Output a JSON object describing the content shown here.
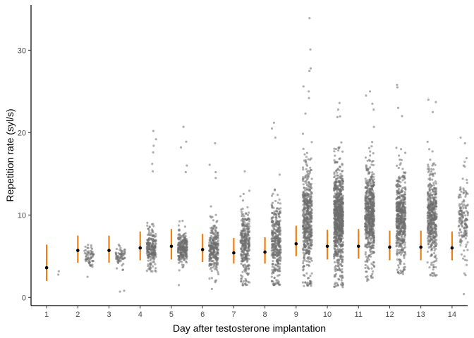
{
  "chart_data": {
    "type": "scatter",
    "xlabel": "Day after testosterone implantation",
    "ylabel": "Repetition rate (syl/s)",
    "x_ticks": [
      "1",
      "2",
      "3",
      "4",
      "5",
      "6",
      "7",
      "8",
      "9",
      "10",
      "11",
      "12",
      "13",
      "14"
    ],
    "y_ticks": [
      0,
      10,
      20,
      30
    ],
    "xlim": [
      0.5,
      14.5
    ],
    "ylim": [
      -1,
      35.5
    ],
    "grid": false,
    "legend": "none",
    "colors": {
      "points": "#6e6e6e",
      "error_bar": "#f07f10",
      "mean": "#000000"
    },
    "summary": [
      {
        "day": 1,
        "mean": 3.6,
        "low": 2.0,
        "high": 6.4
      },
      {
        "day": 2,
        "mean": 5.7,
        "low": 4.2,
        "high": 7.5
      },
      {
        "day": 3,
        "mean": 5.7,
        "low": 4.2,
        "high": 7.5
      },
      {
        "day": 4,
        "mean": 6.0,
        "low": 4.5,
        "high": 8.0
      },
      {
        "day": 5,
        "mean": 6.2,
        "low": 4.6,
        "high": 8.3
      },
      {
        "day": 6,
        "mean": 5.8,
        "low": 4.3,
        "high": 7.7
      },
      {
        "day": 7,
        "mean": 5.4,
        "low": 4.1,
        "high": 7.2
      },
      {
        "day": 8,
        "mean": 5.5,
        "low": 4.1,
        "high": 7.3
      },
      {
        "day": 9,
        "mean": 6.5,
        "low": 5.0,
        "high": 8.7
      },
      {
        "day": 10,
        "mean": 6.2,
        "low": 4.6,
        "high": 8.2
      },
      {
        "day": 11,
        "mean": 6.2,
        "low": 4.7,
        "high": 8.3
      },
      {
        "day": 12,
        "mean": 6.1,
        "low": 4.5,
        "high": 8.1
      },
      {
        "day": 13,
        "mean": 6.1,
        "low": 4.5,
        "high": 8.1
      },
      {
        "day": 14,
        "mean": 6.0,
        "low": 4.5,
        "high": 8.0
      }
    ],
    "point_groups": [
      {
        "day": 1,
        "count": 2,
        "center": 3.1,
        "spread": 0.3,
        "min": 2.8,
        "max": 3.4,
        "extremes": []
      },
      {
        "day": 2,
        "count": 60,
        "center": 5.0,
        "spread": 0.8,
        "min": 2.4,
        "max": 6.6,
        "extremes": [
          2.5
        ]
      },
      {
        "day": 3,
        "count": 65,
        "center": 5.0,
        "spread": 0.8,
        "min": 2.8,
        "max": 6.5,
        "extremes": [
          0.8,
          0.7
        ]
      },
      {
        "day": 4,
        "count": 220,
        "center": 6.0,
        "spread": 1.6,
        "min": 3.0,
        "max": 14.0,
        "extremes": [
          20.2,
          19.2,
          18.4,
          17.6,
          16.2,
          15.3
        ]
      },
      {
        "day": 5,
        "count": 240,
        "center": 6.0,
        "spread": 1.2,
        "min": 3.0,
        "max": 14.0,
        "extremes": [
          20.7,
          18.9,
          18.2,
          16.0,
          15.2,
          1.5
        ]
      },
      {
        "day": 6,
        "count": 260,
        "center": 5.8,
        "spread": 1.8,
        "min": 1.0,
        "max": 12.0,
        "extremes": [
          18.7,
          16.1,
          15.2,
          14.5
        ]
      },
      {
        "day": 7,
        "count": 300,
        "center": 6.5,
        "spread": 2.8,
        "min": 1.4,
        "max": 15.5,
        "extremes": [
          1.6,
          1.7,
          1.5,
          15.3
        ]
      },
      {
        "day": 8,
        "count": 340,
        "center": 6.8,
        "spread": 3.4,
        "min": 1.5,
        "max": 19.0,
        "extremes": [
          21.2,
          20.5,
          19.4,
          1.5,
          1.6
        ]
      },
      {
        "day": 9,
        "count": 520,
        "center": 9.5,
        "spread": 4.5,
        "min": 1.3,
        "max": 24.0,
        "extremes": [
          33.9,
          30.1,
          27.8,
          27.5,
          25.6,
          25.0,
          24.2,
          1.6,
          1.4
        ]
      },
      {
        "day": 10,
        "count": 820,
        "center": 9.5,
        "spread": 4.0,
        "min": 1.2,
        "max": 22.0,
        "extremes": [
          23.6,
          22.8,
          1.3,
          1.5,
          1.8
        ]
      },
      {
        "day": 11,
        "count": 620,
        "center": 10.0,
        "spread": 3.6,
        "min": 2.0,
        "max": 22.0,
        "extremes": [
          25.0,
          24.5,
          23.5,
          22.8
        ]
      },
      {
        "day": 12,
        "count": 520,
        "center": 9.8,
        "spread": 3.3,
        "min": 2.8,
        "max": 21.0,
        "extremes": [
          25.8,
          25.5,
          23.0,
          22.0
        ]
      },
      {
        "day": 13,
        "count": 440,
        "center": 10.0,
        "spread": 3.2,
        "min": 2.5,
        "max": 21.0,
        "extremes": [
          24.0,
          23.7,
          22.5,
          2.6
        ]
      },
      {
        "day": 14,
        "count": 150,
        "center": 9.5,
        "spread": 3.0,
        "min": 2.5,
        "max": 17.0,
        "extremes": [
          19.4,
          18.7,
          16.0,
          0.4,
          2.9
        ]
      }
    ]
  }
}
